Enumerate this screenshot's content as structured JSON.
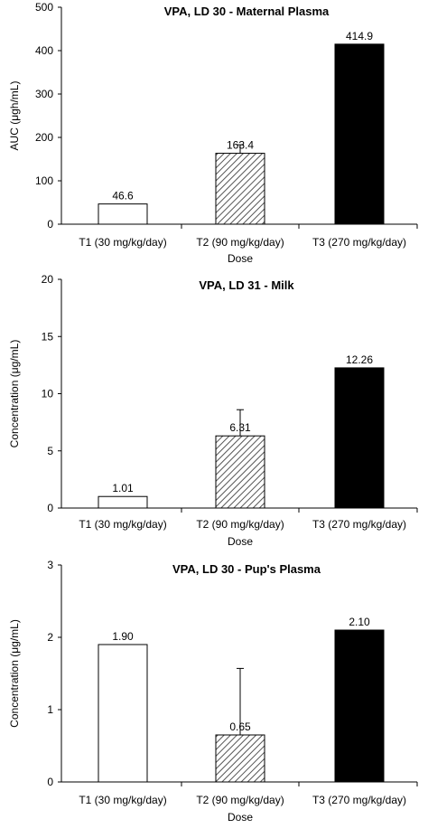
{
  "colors": {
    "T1": "#ffffff",
    "T2": "#b0b0b0",
    "T3": "#000000",
    "axis": "#000000"
  },
  "chart_data": [
    {
      "type": "bar",
      "title": "VPA, LD 30 - Maternal Plasma",
      "xlabel": "Dose",
      "ylabel": "AUC (μgh/mL)",
      "ylim": [
        0,
        500
      ],
      "yticks": [
        0,
        100,
        200,
        300,
        400,
        500
      ],
      "categories": [
        "T1 (30 mg/kg/day)",
        "T2 (90 mg/kg/day)",
        "T3 (270 mg/kg/day)"
      ],
      "values": [
        46.6,
        163.4,
        414.9
      ],
      "value_labels": [
        "46.6",
        "163.4",
        "414.9"
      ],
      "error_upper": [
        null,
        183,
        null
      ],
      "fills": [
        "white",
        "hatched",
        "black"
      ],
      "legend": "none",
      "grid": false
    },
    {
      "type": "bar",
      "title": "VPA, LD 31 - Milk",
      "xlabel": "Dose",
      "ylabel": "Concentration (μg/mL)",
      "ylim": [
        0,
        20
      ],
      "yticks": [
        0,
        5,
        10,
        15,
        20
      ],
      "categories": [
        "T1 (30 mg/kg/day)",
        "T2 (90 mg/kg/day)",
        "T3 (270 mg/kg/day)"
      ],
      "values": [
        1.01,
        6.31,
        12.26
      ],
      "value_labels": [
        "1.01",
        "6.31",
        "12.26"
      ],
      "error_upper": [
        null,
        8.6,
        null
      ],
      "fills": [
        "white",
        "hatched",
        "black"
      ],
      "legend": "none",
      "grid": false
    },
    {
      "type": "bar",
      "title": "VPA, LD 30 - Pup's Plasma",
      "xlabel": "Dose",
      "ylabel": "Concentration (μg/mL)",
      "ylim": [
        0,
        3
      ],
      "yticks": [
        0,
        1,
        2,
        3
      ],
      "categories": [
        "T1 (30 mg/kg/day)",
        "T2 (90 mg/kg/day)",
        "T3 (270 mg/kg/day)"
      ],
      "values": [
        1.9,
        0.65,
        2.1
      ],
      "value_labels": [
        "1.90",
        "0.65",
        "2.10"
      ],
      "error_upper": [
        null,
        1.57,
        null
      ],
      "fills": [
        "white",
        "hatched",
        "black"
      ],
      "legend": "none",
      "grid": false
    }
  ]
}
